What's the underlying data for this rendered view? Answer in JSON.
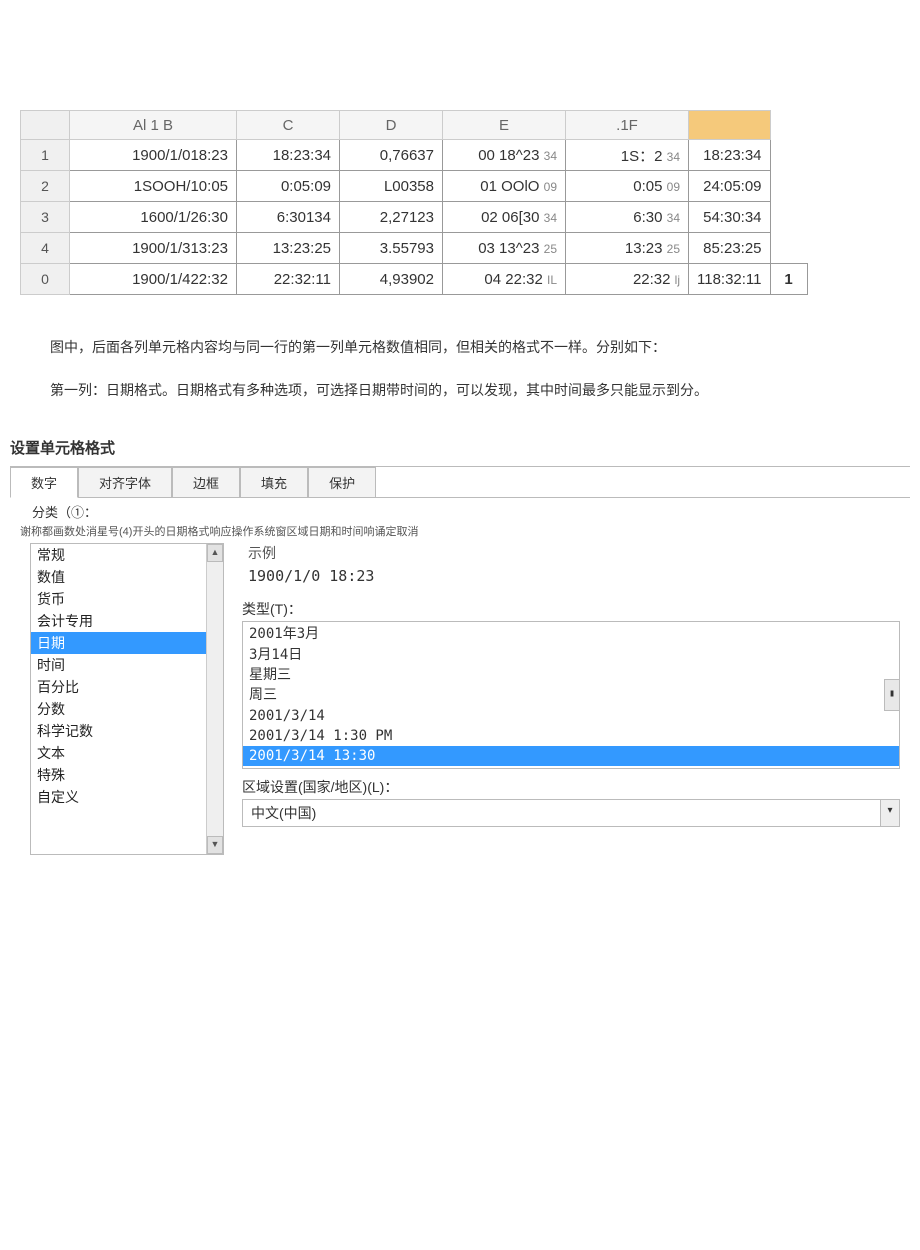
{
  "sheet": {
    "headers": [
      "",
      "Al 1 B",
      "C",
      "D",
      "E",
      ".1F",
      ""
    ],
    "row_nums": [
      "1",
      "2",
      "3",
      "4",
      "0"
    ],
    "rows": [
      {
        "a": "1900/1/018:23",
        "b": "18:23:34",
        "c": "0,76637",
        "d_main": "00 18^23",
        "d_sub": "34",
        "e_main": "1S：2",
        "e_sub": "34",
        "f": "18:23:34",
        "extra": ""
      },
      {
        "a": "1SOOH/10:05",
        "b": "0:05:09",
        "c": "L00358",
        "d_main": "01 OOlO",
        "d_sub": "09",
        "e_main": "0:05",
        "e_sub": "09",
        "f": "24:05:09",
        "extra": ""
      },
      {
        "a": "1600/1/26:30",
        "b": "6:30134",
        "c": "2,27123",
        "d_main": "02 06[30",
        "d_sub": "34",
        "e_main": "6:30",
        "e_sub": "34",
        "f": "54:30:34",
        "extra": ""
      },
      {
        "a": "1900/1/313:23",
        "b": "13:23:25",
        "c": "3.55793",
        "d_main": "03 13^23",
        "d_sub": "25",
        "e_main": "13:23",
        "e_sub": "25",
        "f": "85:23:25",
        "extra": ""
      },
      {
        "a": "1900/1/422:32",
        "b": "22:32:11",
        "c": "4,93902",
        "d_main": "04 22:32",
        "d_sub": "IL",
        "e_main": "22:32",
        "e_sub": "lj",
        "f": "118:32:11",
        "extra": "1"
      }
    ],
    "colors": {
      "border": "#999999",
      "header_bg": "#f5f5f5",
      "rownum_bg": "#f0f0f0",
      "highlight_last_col": "#f5c97b"
    }
  },
  "paragraphs": {
    "p1": "图中，后面各列单元格内容均与同一行的第一列单元格数值相同，但相关的格式不一样。分别如下：",
    "p2": "第一列：日期格式。日期格式有多种选项，可选择日期带时间的，可以发现，其中时间最多只能显示到分。"
  },
  "dialog": {
    "title": "设置单元格格式",
    "tabs": [
      "数字",
      "对齐字体",
      "边框",
      "填充",
      "保护"
    ],
    "active_tab_index": 0,
    "category_label": "分类（①：",
    "helper_text": "谢称都画数处消星号(4)开头的日期格式响应操作系统窗区域日期和时间响诵定取消",
    "categories": [
      "常规",
      "数值",
      "货币",
      "会计专用",
      "日期",
      "时间",
      "百分比",
      "分数",
      "科学记数",
      "文本",
      "特殊",
      "自定义"
    ],
    "selected_category_index": 4,
    "sample_label": "示例",
    "sample_value": "1900/1/0 18:23",
    "type_label": "类型(T)：",
    "types": [
      "2001年3月",
      "3月14日",
      "星期三",
      "周三",
      "2001/3/14",
      "2001/3/14 1:30 PM",
      "2001/3/14 13:30"
    ],
    "selected_type_index": 6,
    "locale_label": "区域设置(国家/地区)(L)：",
    "locale_value": "中文(中国)",
    "colors": {
      "select_bg": "#3399ff",
      "select_fg": "#ffffff",
      "border": "#bbbbbb"
    }
  }
}
